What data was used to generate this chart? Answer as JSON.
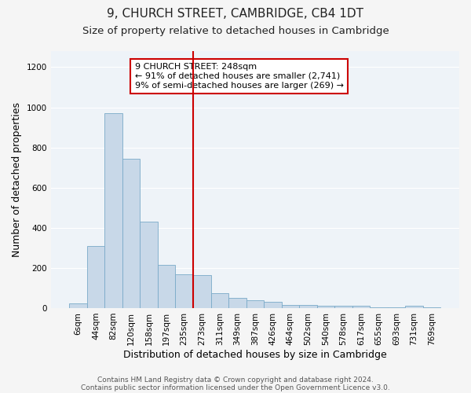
{
  "title1": "9, CHURCH STREET, CAMBRIDGE, CB4 1DT",
  "title2": "Size of property relative to detached houses in Cambridge",
  "xlabel": "Distribution of detached houses by size in Cambridge",
  "ylabel": "Number of detached properties",
  "footnote1": "Contains HM Land Registry data © Crown copyright and database right 2024.",
  "footnote2": "Contains public sector information licensed under the Open Government Licence v3.0.",
  "categories": [
    "6sqm",
    "44sqm",
    "82sqm",
    "120sqm",
    "158sqm",
    "197sqm",
    "235sqm",
    "273sqm",
    "311sqm",
    "349sqm",
    "387sqm",
    "426sqm",
    "464sqm",
    "502sqm",
    "540sqm",
    "578sqm",
    "617sqm",
    "655sqm",
    "693sqm",
    "731sqm",
    "769sqm"
  ],
  "values": [
    25,
    310,
    970,
    745,
    430,
    215,
    170,
    165,
    75,
    50,
    40,
    30,
    15,
    15,
    10,
    10,
    10,
    5,
    5,
    12,
    5
  ],
  "bar_color": "#c8d8e8",
  "bar_edge_color": "#7aaac8",
  "vline_x_index": 6,
  "vline_color": "#cc0000",
  "annotation_box_text": "9 CHURCH STREET: 248sqm\n← 91% of detached houses are smaller (2,741)\n9% of semi-detached houses are larger (269) →",
  "annotation_box_color": "#ffffff",
  "annotation_box_edge_color": "#cc0000",
  "ylim": [
    0,
    1280
  ],
  "yticks": [
    0,
    200,
    400,
    600,
    800,
    1000,
    1200
  ],
  "plot_bg_color": "#eef3f8",
  "fig_bg_color": "#f5f5f5",
  "grid_color": "#ffffff",
  "title1_fontsize": 11,
  "title2_fontsize": 9.5,
  "xlabel_fontsize": 9,
  "ylabel_fontsize": 9,
  "tick_fontsize": 7.5,
  "annot_fontsize": 8,
  "footnote_fontsize": 6.5
}
